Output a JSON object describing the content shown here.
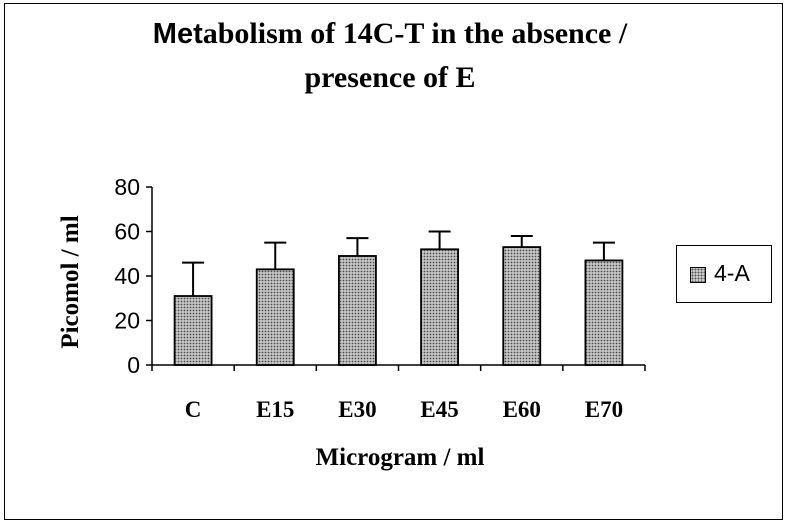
{
  "chart_data": {
    "type": "bar",
    "title_prefix": "Met",
    "title_rest_line1": "abolism of 14C-T in the absence /",
    "title_line2": "presence of E",
    "categories": [
      "C",
      "E15",
      "E30",
      "E45",
      "E60",
      "E70"
    ],
    "series": [
      {
        "name": "4-A",
        "values": [
          31,
          43,
          49,
          52,
          53,
          47
        ],
        "errors": [
          15,
          12,
          8,
          8,
          5,
          8
        ]
      }
    ],
    "xlabel": "Microgram / ml",
    "ylabel": "Picomol / ml",
    "ylim": [
      0,
      80
    ],
    "yticks": [
      "0",
      "20",
      "40",
      "60",
      "80"
    ],
    "legend_position": "right"
  },
  "colors": {
    "bar_fill": "#c8c8c8",
    "bar_dots": "#4a4a4a",
    "axis": "#000000",
    "background": "#ffffff"
  }
}
